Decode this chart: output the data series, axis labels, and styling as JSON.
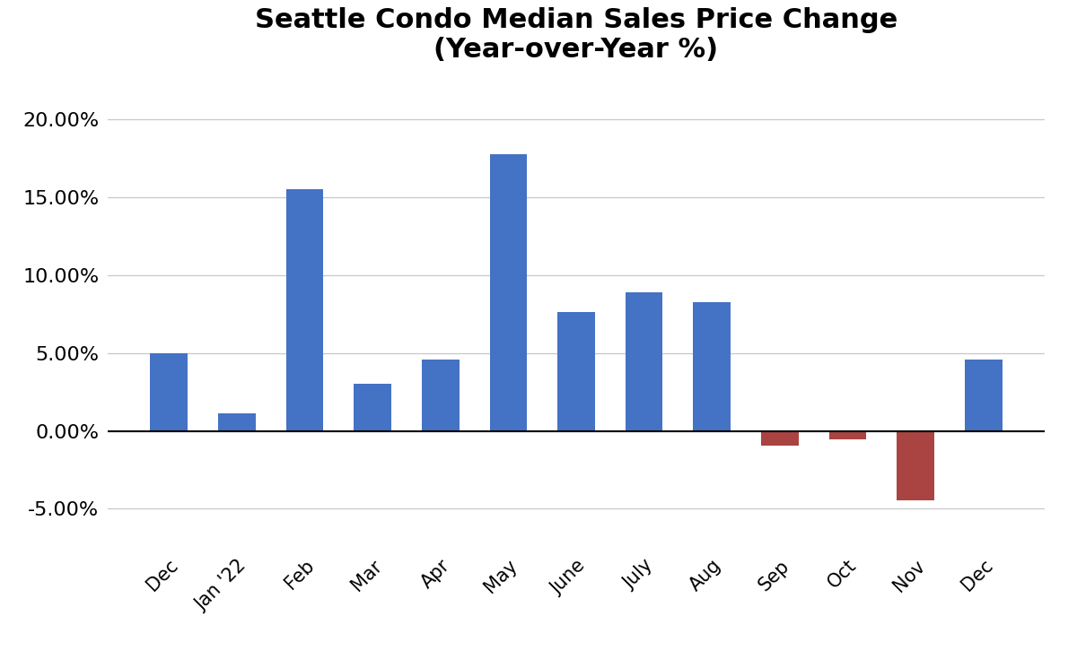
{
  "categories": [
    "Dec",
    "Jan '22",
    "Feb",
    "Mar",
    "Apr",
    "May",
    "June",
    "July",
    "Aug",
    "Sep",
    "Oct",
    "Nov",
    "Dec"
  ],
  "values": [
    4.98,
    1.15,
    15.5,
    3.05,
    4.6,
    17.75,
    7.65,
    8.9,
    8.25,
    -0.95,
    -0.55,
    -4.45,
    4.6
  ],
  "positive_color": "#4472C4",
  "negative_color": "#A94442",
  "title_line1": "Seattle Condo Median Sales Price Change",
  "title_line2": "(Year-over-Year %)",
  "ylim_min": -7.5,
  "ylim_max": 22.5,
  "yticks": [
    -5.0,
    0.0,
    5.0,
    10.0,
    15.0,
    20.0
  ],
  "background_color": "#ffffff",
  "grid_color": "#c8c8c8",
  "title_fontsize": 22,
  "ytick_fontsize": 16,
  "xtick_fontsize": 15,
  "bar_width": 0.55
}
